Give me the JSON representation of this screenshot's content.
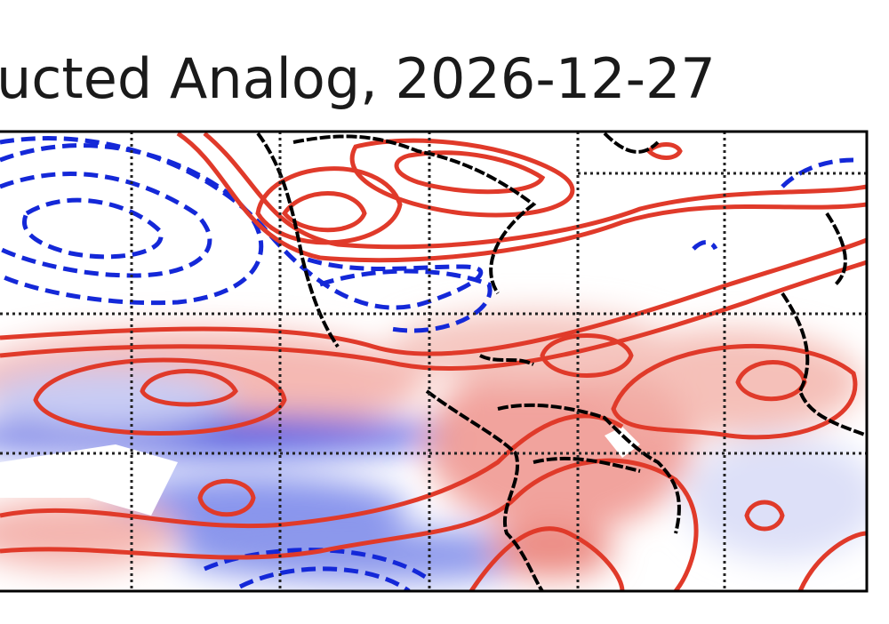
{
  "title": "ucted Analog, 2026-12-27"
}
